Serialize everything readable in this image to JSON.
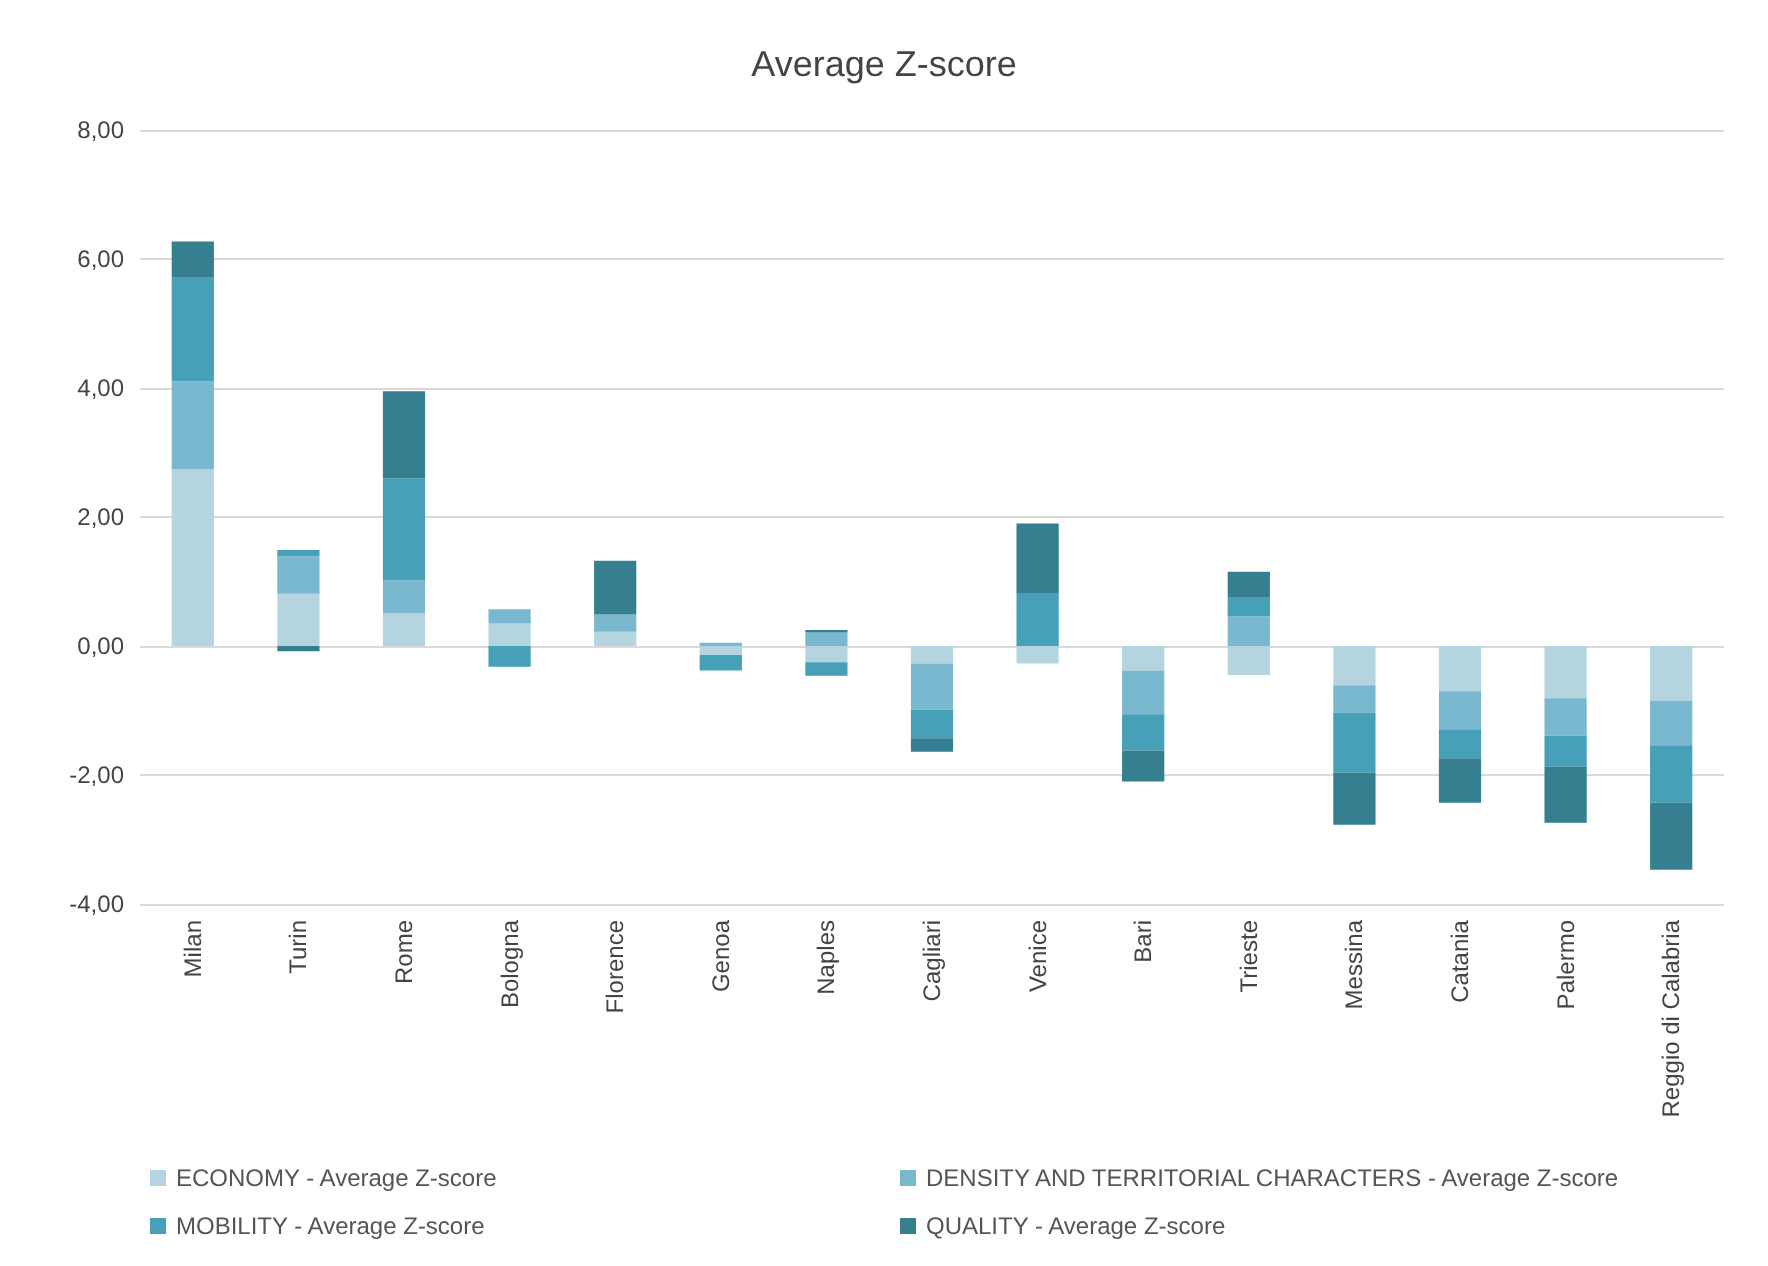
{
  "chart_data": {
    "type": "bar",
    "title": "Average Z-score",
    "stacked": true,
    "grid": "y",
    "legend": "bottom",
    "categories": [
      "Milan",
      "Turin",
      "Rome",
      "Bologna",
      "Florence",
      "Genoa",
      "Naples",
      "Cagliari",
      "Venice",
      "Bari",
      "Trieste",
      "Messina",
      "Catania",
      "Palermo",
      "Reggio di Calabria"
    ],
    "series": [
      {
        "name": "ECONOMY - Average Z-score",
        "color": "#b4d4e0",
        "values": [
          2.74,
          0.81,
          0.51,
          0.35,
          0.22,
          -0.14,
          -0.25,
          -0.27,
          -0.27,
          -0.38,
          -0.45,
          -0.61,
          -0.7,
          -0.81,
          -0.85
        ]
      },
      {
        "name": "DENSITY AND TERRITORIAL CHARACTERS - Average Z-score",
        "color": "#7ab8cf",
        "values": [
          1.36,
          0.58,
          0.51,
          0.22,
          0.27,
          0.05,
          0.21,
          -0.72,
          0,
          -0.68,
          0.46,
          -0.42,
          -0.59,
          -0.58,
          -0.69
        ]
      },
      {
        "name": "MOBILITY - Average Z-score",
        "color": "#45a0b8",
        "values": [
          1.62,
          0.1,
          1.58,
          -0.32,
          0,
          -0.24,
          -0.21,
          -0.44,
          0.81,
          -0.56,
          0.29,
          -0.93,
          -0.45,
          -0.48,
          -0.89
        ]
      },
      {
        "name": "QUALITY - Average Z-score",
        "color": "#357f91",
        "values": [
          0.55,
          -0.08,
          1.35,
          0,
          0.83,
          0,
          0.04,
          -0.21,
          1.09,
          -0.48,
          0.4,
          -0.81,
          -0.69,
          -0.87,
          -1.04
        ]
      }
    ],
    "ylim": [
      -4,
      8
    ],
    "yticks": [
      {
        "value": -4,
        "label": "-4,00"
      },
      {
        "value": -2,
        "label": "-2,00"
      },
      {
        "value": 0,
        "label": "0,00"
      },
      {
        "value": 2,
        "label": "2,00"
      },
      {
        "value": 4,
        "label": "4,00"
      },
      {
        "value": 6,
        "label": "6,00"
      },
      {
        "value": 8,
        "label": "8,00"
      }
    ]
  }
}
